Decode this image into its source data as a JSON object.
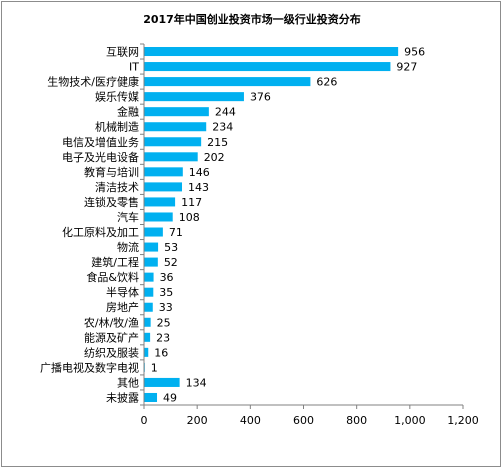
{
  "chart_data": {
    "type": "bar",
    "orientation": "horizontal",
    "title": "2017年中国创业投资市场一级行业投资分布",
    "categories": [
      "互联网",
      "IT",
      "生物技术/医疗健康",
      "娱乐传媒",
      "金融",
      "机械制造",
      "电信及增值业务",
      "电子及光电设备",
      "教育与培训",
      "清洁技术",
      "连锁及零售",
      "汽车",
      "化工原料及加工",
      "物流",
      "建筑/工程",
      "食品&饮料",
      "半导体",
      "房地产",
      "农/林/牧/渔",
      "能源及矿产",
      "纺织及服装",
      "广播电视及数字电视",
      "其他",
      "未披露"
    ],
    "values": [
      956,
      927,
      626,
      376,
      244,
      234,
      215,
      202,
      146,
      143,
      117,
      108,
      71,
      53,
      52,
      36,
      35,
      33,
      25,
      23,
      16,
      1,
      134,
      49
    ],
    "value_labels": [
      "956",
      "927",
      "626",
      "376",
      "244",
      "234",
      "215",
      "202",
      "146",
      "143",
      "117",
      "108",
      "71",
      "53",
      "52",
      "36",
      "35",
      "33",
      "25",
      "23",
      "16",
      "1",
      "134",
      "49"
    ],
    "xlim": [
      0,
      1200
    ],
    "xticks": [
      "0",
      "200",
      "400",
      "600",
      "800",
      "1,000",
      "1,200"
    ],
    "bar_color": "#00b0f0",
    "grid": false,
    "legend": "none"
  }
}
